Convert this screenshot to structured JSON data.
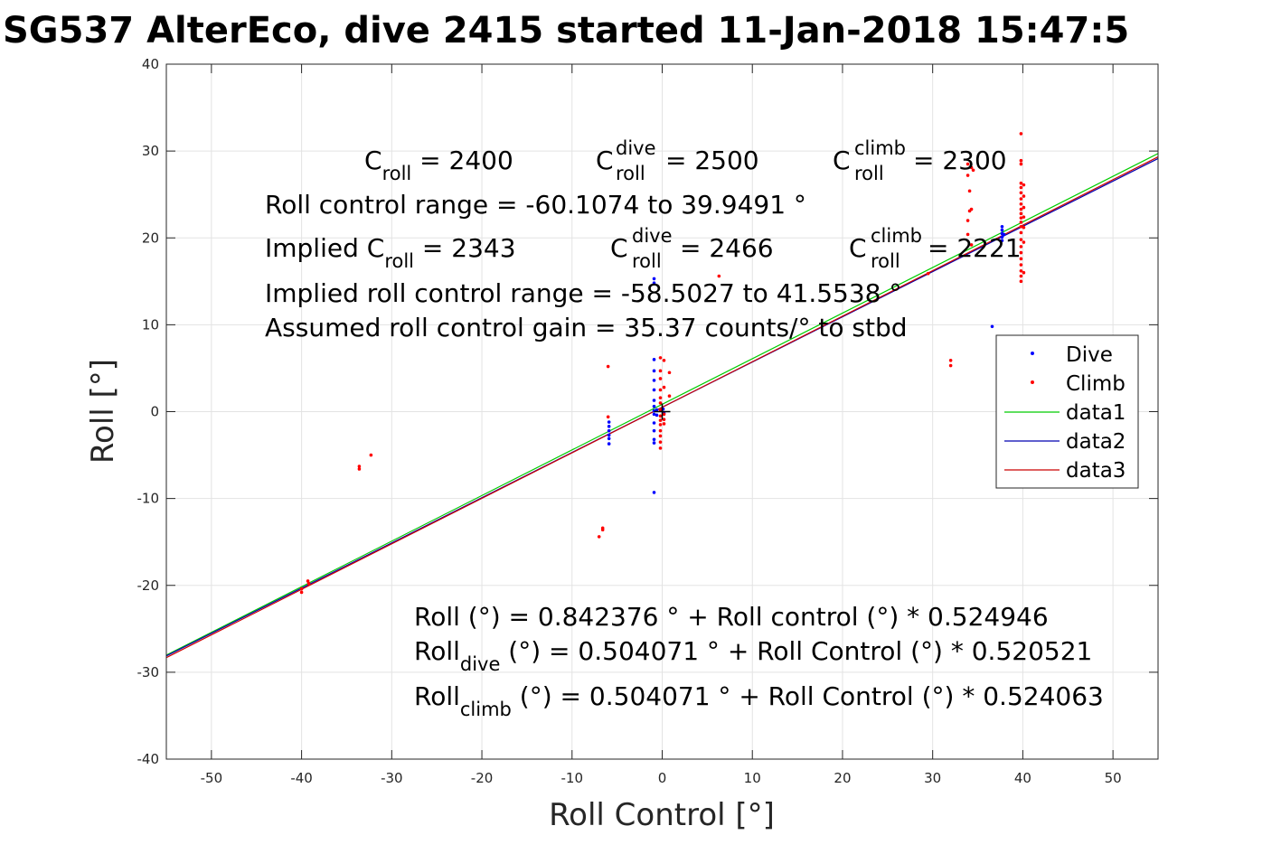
{
  "title": "SG537 AlterEco, dive 2415 started 11-Jan-2018 15:47:5",
  "xlabel": "Roll Control [°]",
  "ylabel": "Roll [°]",
  "xticks": [
    "-50",
    "-40",
    "-30",
    "-20",
    "-10",
    "0",
    "10",
    "20",
    "30",
    "40",
    "50"
  ],
  "yticks": [
    "40",
    "30",
    "20",
    "10",
    "0",
    "-10",
    "-20",
    "-30",
    "-40"
  ],
  "annotations": {
    "c_roll": {
      "pre": "C",
      "sub": "roll",
      "post": " = 2400"
    },
    "c_roll_dive": {
      "pre": "C",
      "sup": "dive",
      "sub": "roll",
      "post": " = 2500"
    },
    "c_roll_climb": {
      "pre": "C",
      "sup": "climb",
      "sub": "roll",
      "post": " = 2300"
    },
    "range": "Roll control range = -60.1074 to 39.9491 °",
    "implied_c_roll": {
      "pre": "Implied C",
      "sub": "roll",
      "post": " = 2343"
    },
    "implied_c_roll_dive": {
      "pre": "C",
      "sup": "dive",
      "sub": "roll",
      "post": " = 2466"
    },
    "implied_c_roll_climb": {
      "pre": "C",
      "sup": "climb",
      "sub": "roll",
      "post": " = 2221"
    },
    "implied_range": "Implied roll control range = -58.5027 to 41.5538 °",
    "gain": "Assumed roll control gain = 35.37 counts/° to stbd",
    "fit_all": "Roll (°) = 0.842376 ° + Roll control (°) * 0.524946",
    "fit_dive": {
      "pre": "Roll",
      "sub": "dive",
      "post": " (°) = 0.504071 ° + Roll Control (°) * 0.520521"
    },
    "fit_climb": {
      "pre": "Roll",
      "sub": "climb",
      "post": " (°) = 0.504071 ° + Roll Control (°) * 0.524063"
    }
  },
  "legend": [
    {
      "label": "Dive",
      "kind": "dot",
      "color": "#0000ff"
    },
    {
      "label": "Climb",
      "kind": "dot",
      "color": "#ff0000"
    },
    {
      "label": "data1",
      "kind": "line",
      "color": "#00cc00"
    },
    {
      "label": "data2",
      "kind": "line",
      "color": "#0000b0"
    },
    {
      "label": "data3",
      "kind": "line",
      "color": "#cc0000"
    }
  ],
  "chart_data": {
    "type": "scatter",
    "xlabel": "Roll Control [°]",
    "ylabel": "Roll [°]",
    "xlim": [
      -55,
      55
    ],
    "ylim": [
      -40,
      40
    ],
    "grid": true,
    "legend_position": "right",
    "series": [
      {
        "name": "Dive",
        "color": "#0000ff",
        "points": [
          [
            -0.9,
            15.3
          ],
          [
            -0.9,
            14.8
          ],
          [
            -0.9,
            6.0
          ],
          [
            -0.9,
            4.7
          ],
          [
            -0.9,
            3.6
          ],
          [
            -0.9,
            2.5
          ],
          [
            -0.9,
            1.3
          ],
          [
            -0.9,
            0.6
          ],
          [
            -0.9,
            0.1
          ],
          [
            -0.9,
            -0.3
          ],
          [
            -0.9,
            -1.3
          ],
          [
            -0.9,
            -2.2
          ],
          [
            -0.9,
            -3.2
          ],
          [
            -0.9,
            -3.6
          ],
          [
            -0.9,
            -9.3
          ],
          [
            -0.6,
            0.2
          ],
          [
            -0.6,
            -0.4
          ],
          [
            -5.9,
            -1.2
          ],
          [
            -5.9,
            -1.7
          ],
          [
            -5.9,
            -2.2
          ],
          [
            -5.9,
            -2.7
          ],
          [
            -5.9,
            -3.1
          ],
          [
            -5.9,
            -3.7
          ],
          [
            37.7,
            21.3
          ],
          [
            37.7,
            20.9
          ],
          [
            37.7,
            20.5
          ],
          [
            37.7,
            20.1
          ],
          [
            37.7,
            19.7
          ],
          [
            37.9,
            20.4
          ],
          [
            36.6,
            9.8
          ],
          [
            0.2,
            -0.2
          ],
          [
            0.1,
            0.3
          ]
        ]
      },
      {
        "name": "Climb",
        "color": "#ff0000",
        "points": [
          [
            -40,
            -20.4
          ],
          [
            -40,
            -20.8
          ],
          [
            -39.3,
            -19.5
          ],
          [
            -39.2,
            -19.8
          ],
          [
            -33.6,
            -6.3
          ],
          [
            -33.6,
            -6.6
          ],
          [
            -32.3,
            -5.0
          ],
          [
            -6.0,
            5.2
          ],
          [
            -6.0,
            -0.6
          ],
          [
            -7.0,
            -14.4
          ],
          [
            -6.6,
            -13.6
          ],
          [
            -6.6,
            -13.4
          ],
          [
            -0.2,
            6.2
          ],
          [
            -0.2,
            4.7
          ],
          [
            -0.2,
            3.8
          ],
          [
            -0.2,
            2.5
          ],
          [
            -0.2,
            1.6
          ],
          [
            -0.2,
            1.0
          ],
          [
            -0.2,
            0.2
          ],
          [
            -0.2,
            -0.5
          ],
          [
            -0.2,
            -1.0
          ],
          [
            -0.2,
            -1.5
          ],
          [
            -0.2,
            -2.2
          ],
          [
            -0.2,
            -2.8
          ],
          [
            -0.2,
            -3.5
          ],
          [
            -0.2,
            -4.2
          ],
          [
            0.2,
            5.9
          ],
          [
            0.2,
            2.8
          ],
          [
            0.2,
            -0.3
          ],
          [
            0.2,
            -0.9
          ],
          [
            0.2,
            -1.4
          ],
          [
            0.8,
            1.8
          ],
          [
            0.8,
            4.5
          ],
          [
            6.3,
            15.6
          ],
          [
            29.5,
            15.9
          ],
          [
            32.0,
            5.3
          ],
          [
            32.0,
            5.9
          ],
          [
            33.9,
            28.5
          ],
          [
            33.9,
            27.2
          ],
          [
            34.1,
            25.4
          ],
          [
            34.1,
            23.1
          ],
          [
            33.9,
            22.0
          ],
          [
            33.9,
            20.4
          ],
          [
            34.3,
            19.2
          ],
          [
            34.3,
            23.3
          ],
          [
            34.3,
            28.1
          ],
          [
            34.5,
            27.8
          ],
          [
            39.8,
            32.0
          ],
          [
            39.8,
            28.9
          ],
          [
            39.8,
            28.5
          ],
          [
            39.8,
            26.3
          ],
          [
            39.8,
            25.8
          ],
          [
            39.8,
            25.2
          ],
          [
            39.8,
            24.5
          ],
          [
            39.8,
            23.9
          ],
          [
            39.8,
            23.3
          ],
          [
            39.8,
            22.8
          ],
          [
            39.8,
            22.3
          ],
          [
            39.8,
            21.8
          ],
          [
            39.8,
            21.3
          ],
          [
            39.8,
            20.6
          ],
          [
            39.8,
            19.8
          ],
          [
            39.8,
            19.0
          ],
          [
            39.8,
            18.3
          ],
          [
            39.8,
            17.6
          ],
          [
            39.8,
            16.9
          ],
          [
            39.8,
            16.2
          ],
          [
            39.8,
            15.6
          ],
          [
            39.8,
            15.0
          ],
          [
            40.1,
            26.1
          ],
          [
            40.1,
            24.8
          ],
          [
            40.1,
            23.5
          ],
          [
            40.1,
            22.4
          ],
          [
            40.1,
            21.2
          ],
          [
            40.1,
            19.5
          ],
          [
            40.1,
            16.0
          ]
        ]
      }
    ],
    "lines": [
      {
        "name": "data1",
        "color": "#00cc00",
        "intercept": 0.842376,
        "slope": 0.524946
      },
      {
        "name": "data2",
        "color": "#0000b0",
        "intercept": 0.504071,
        "slope": 0.520521
      },
      {
        "name": "data3",
        "color": "#cc0000",
        "intercept": 0.504071,
        "slope": 0.524063
      }
    ],
    "marker": {
      "x": 0,
      "y": 0,
      "color": "#000000"
    }
  }
}
